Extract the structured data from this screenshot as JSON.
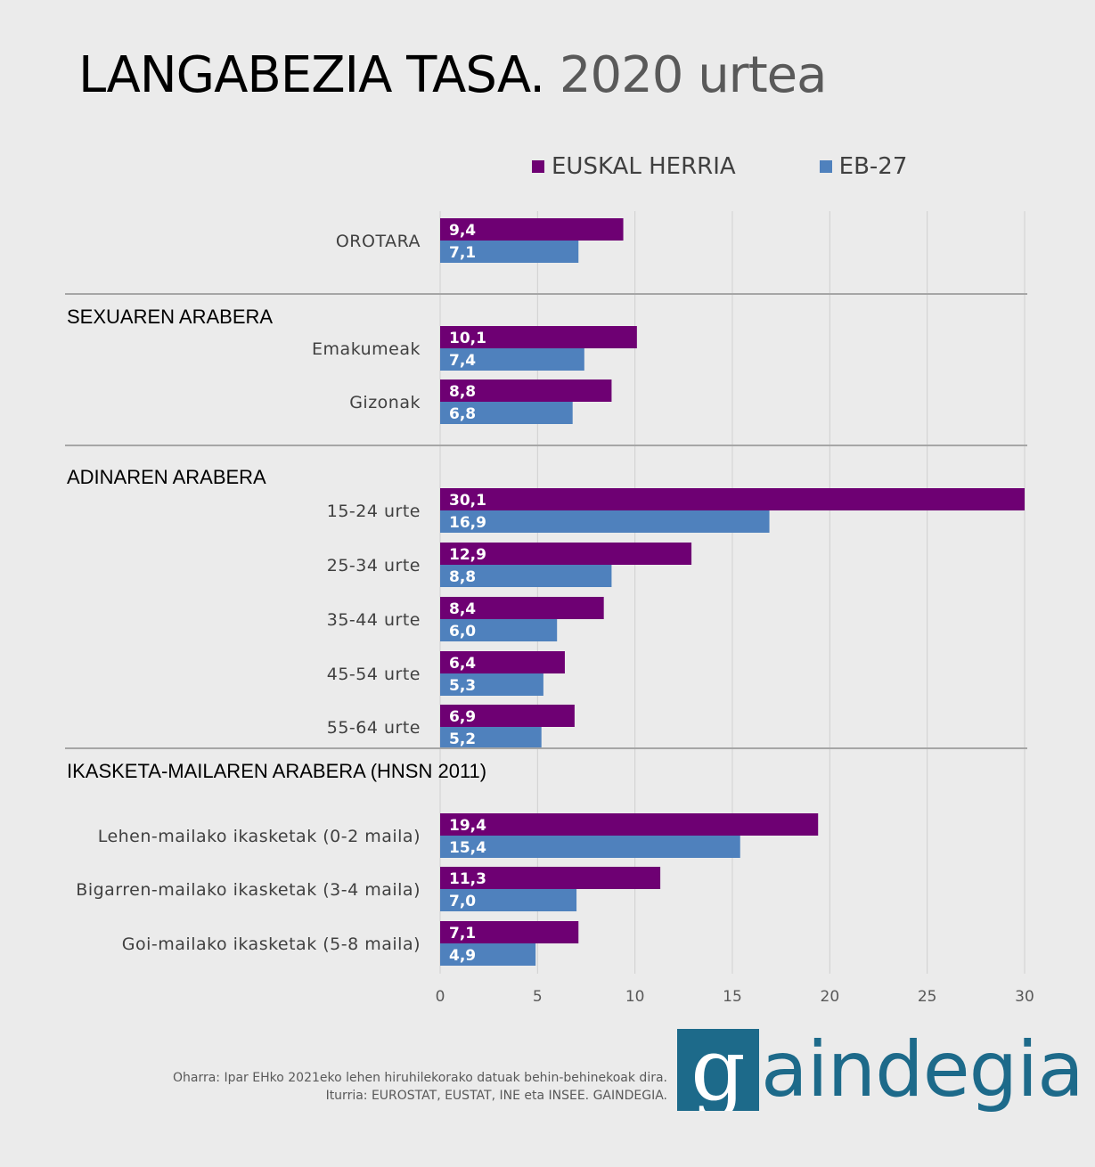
{
  "title": {
    "main": "LANGABEZIA TASA.",
    "year": "2020 urtea"
  },
  "colors": {
    "euskal_herria": "#6e0073",
    "eb27": "#4f81bd",
    "grid": "#d0d0d0",
    "separator": "#a6a6a6",
    "background": "#ebebeb"
  },
  "chart_data": {
    "type": "bar",
    "orientation": "horizontal",
    "title": "LANGABEZIA TASA. 2020 urtea",
    "legend_position": "top-right",
    "xlim": [
      0,
      30
    ],
    "x_ticks": [
      "0",
      "5",
      "10",
      "15",
      "20",
      "25",
      "30"
    ],
    "series_names": [
      "EUSKAL HERRIA",
      "EB-27"
    ],
    "groups": [
      {
        "heading": "",
        "rows": [
          {
            "label": "OROTARA",
            "values": [
              9.4,
              7.1
            ],
            "labels": [
              "9,4",
              "7,1"
            ]
          }
        ]
      },
      {
        "heading": "SEXUAREN ARABERA",
        "rows": [
          {
            "label": "Emakumeak",
            "values": [
              10.1,
              7.4
            ],
            "labels": [
              "10,1",
              "7,4"
            ]
          },
          {
            "label": "Gizonak",
            "values": [
              8.8,
              6.8
            ],
            "labels": [
              "8,8",
              "6,8"
            ]
          }
        ]
      },
      {
        "heading": "ADINAREN ARABERA",
        "rows": [
          {
            "label": "15-24 urte",
            "values": [
              30.1,
              16.9
            ],
            "labels": [
              "30,1",
              "16,9"
            ]
          },
          {
            "label": "25-34 urte",
            "values": [
              12.9,
              8.8
            ],
            "labels": [
              "12,9",
              "8,8"
            ]
          },
          {
            "label": "35-44 urte",
            "values": [
              8.4,
              6.0
            ],
            "labels": [
              "8,4",
              "6,0"
            ]
          },
          {
            "label": "45-54 urte",
            "values": [
              6.4,
              5.3
            ],
            "labels": [
              "6,4",
              "5,3"
            ]
          },
          {
            "label": "55-64 urte",
            "values": [
              6.9,
              5.2
            ],
            "labels": [
              "6,9",
              "5,2"
            ]
          }
        ]
      },
      {
        "heading": "IKASKETA-MAILAREN ARABERA (HNSN 2011)",
        "rows": [
          {
            "label": "Lehen-mailako ikasketak (0-2 maila)",
            "values": [
              19.4,
              15.4
            ],
            "labels": [
              "19,4",
              "15,4"
            ]
          },
          {
            "label": "Bigarren-mailako ikasketak (3-4 maila)",
            "values": [
              11.3,
              7.0
            ],
            "labels": [
              "11,3",
              "7,0"
            ]
          },
          {
            "label": "Goi-mailako ikasketak (5-8 maila)",
            "values": [
              7.1,
              4.9
            ],
            "labels": [
              "7,1",
              "4,9"
            ]
          }
        ]
      }
    ]
  },
  "footnote": {
    "line1": "Oharra: Ipar EHko 2021eko lehen hiruhilekorako datuak behin-behinekoak dira.",
    "line2": "Iturria: EUROSTAT, EUSTAT, INE eta INSEE. GAINDEGIA."
  },
  "logo": {
    "g": "g",
    "rest": "aindegia"
  }
}
